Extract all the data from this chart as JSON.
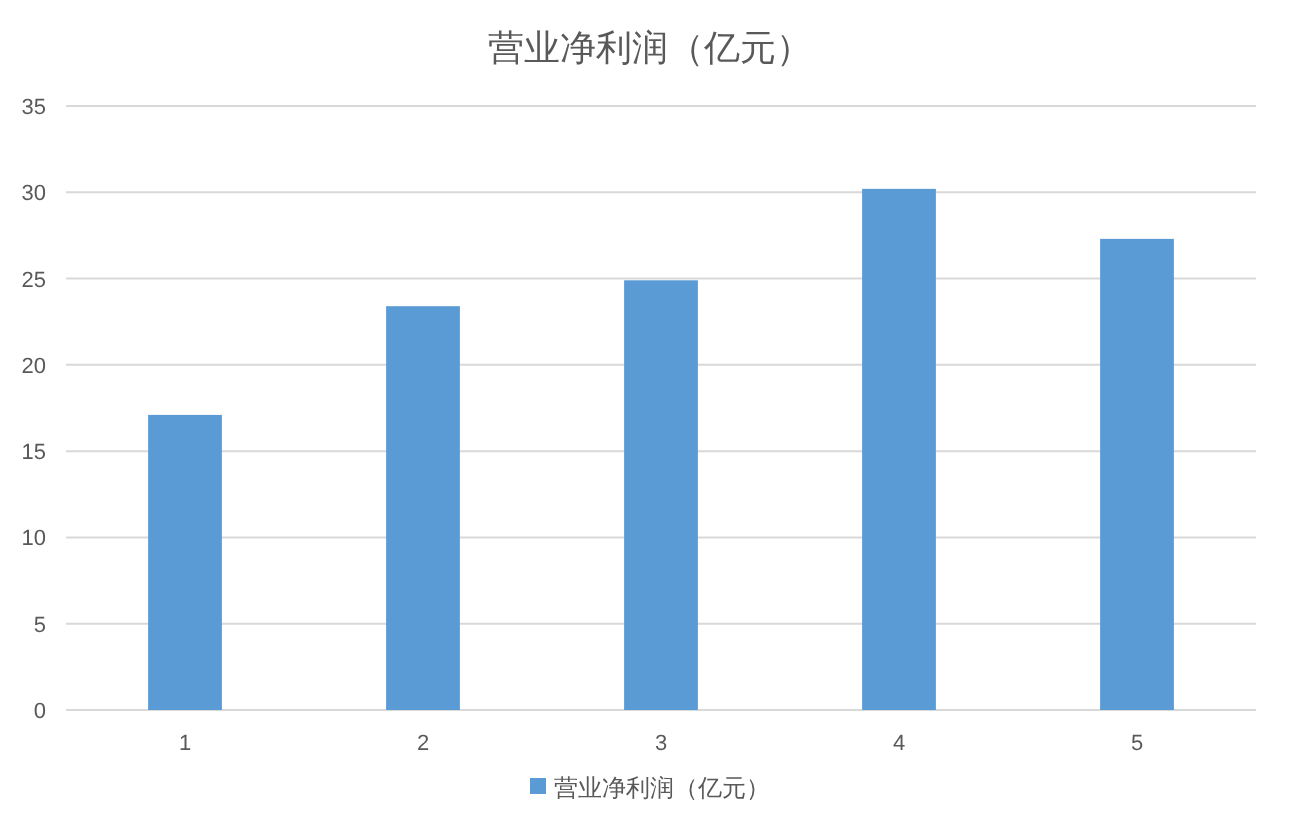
{
  "chart_data": {
    "type": "bar",
    "title": "营业净利润（亿元）",
    "categories": [
      "1",
      "2",
      "3",
      "4",
      "5"
    ],
    "series": [
      {
        "name": "营业净利润（亿元）",
        "color": "#5b9bd5",
        "values": [
          17.1,
          23.4,
          24.9,
          30.2,
          27.3
        ]
      }
    ],
    "ylim": [
      0,
      35
    ],
    "yticks": [
      0,
      5,
      10,
      15,
      20,
      25,
      30,
      35
    ],
    "grid": "y",
    "legend": "bottom"
  }
}
